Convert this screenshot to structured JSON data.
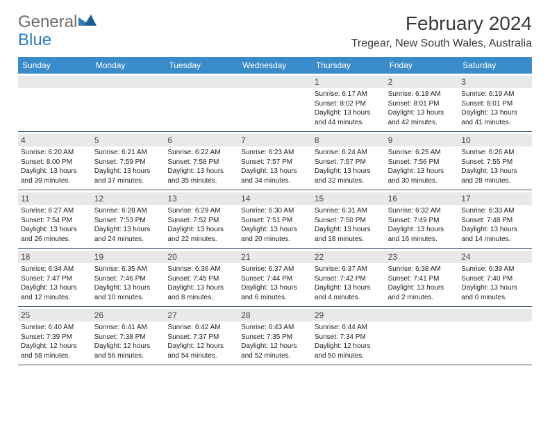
{
  "logo": {
    "text_general": "General",
    "text_blue": "Blue",
    "accent_color": "#2a7bbf"
  },
  "header": {
    "month_title": "February 2024",
    "location": "Tregear, New South Wales, Australia"
  },
  "calendar": {
    "header_bg": "#3a8bc9",
    "header_fg": "#ffffff",
    "daynum_bg": "#e9e9e9",
    "border_color": "#35506a",
    "days_of_week": [
      "Sunday",
      "Monday",
      "Tuesday",
      "Wednesday",
      "Thursday",
      "Friday",
      "Saturday"
    ],
    "weeks": [
      [
        {
          "day": "",
          "sunrise": "",
          "sunset": "",
          "daylight": ""
        },
        {
          "day": "",
          "sunrise": "",
          "sunset": "",
          "daylight": ""
        },
        {
          "day": "",
          "sunrise": "",
          "sunset": "",
          "daylight": ""
        },
        {
          "day": "",
          "sunrise": "",
          "sunset": "",
          "daylight": ""
        },
        {
          "day": "1",
          "sunrise": "Sunrise: 6:17 AM",
          "sunset": "Sunset: 8:02 PM",
          "daylight": "Daylight: 13 hours and 44 minutes."
        },
        {
          "day": "2",
          "sunrise": "Sunrise: 6:18 AM",
          "sunset": "Sunset: 8:01 PM",
          "daylight": "Daylight: 13 hours and 42 minutes."
        },
        {
          "day": "3",
          "sunrise": "Sunrise: 6:19 AM",
          "sunset": "Sunset: 8:01 PM",
          "daylight": "Daylight: 13 hours and 41 minutes."
        }
      ],
      [
        {
          "day": "4",
          "sunrise": "Sunrise: 6:20 AM",
          "sunset": "Sunset: 8:00 PM",
          "daylight": "Daylight: 13 hours and 39 minutes."
        },
        {
          "day": "5",
          "sunrise": "Sunrise: 6:21 AM",
          "sunset": "Sunset: 7:59 PM",
          "daylight": "Daylight: 13 hours and 37 minutes."
        },
        {
          "day": "6",
          "sunrise": "Sunrise: 6:22 AM",
          "sunset": "Sunset: 7:58 PM",
          "daylight": "Daylight: 13 hours and 35 minutes."
        },
        {
          "day": "7",
          "sunrise": "Sunrise: 6:23 AM",
          "sunset": "Sunset: 7:57 PM",
          "daylight": "Daylight: 13 hours and 34 minutes."
        },
        {
          "day": "8",
          "sunrise": "Sunrise: 6:24 AM",
          "sunset": "Sunset: 7:57 PM",
          "daylight": "Daylight: 13 hours and 32 minutes."
        },
        {
          "day": "9",
          "sunrise": "Sunrise: 6:25 AM",
          "sunset": "Sunset: 7:56 PM",
          "daylight": "Daylight: 13 hours and 30 minutes."
        },
        {
          "day": "10",
          "sunrise": "Sunrise: 6:26 AM",
          "sunset": "Sunset: 7:55 PM",
          "daylight": "Daylight: 13 hours and 28 minutes."
        }
      ],
      [
        {
          "day": "11",
          "sunrise": "Sunrise: 6:27 AM",
          "sunset": "Sunset: 7:54 PM",
          "daylight": "Daylight: 13 hours and 26 minutes."
        },
        {
          "day": "12",
          "sunrise": "Sunrise: 6:28 AM",
          "sunset": "Sunset: 7:53 PM",
          "daylight": "Daylight: 13 hours and 24 minutes."
        },
        {
          "day": "13",
          "sunrise": "Sunrise: 6:29 AM",
          "sunset": "Sunset: 7:52 PM",
          "daylight": "Daylight: 13 hours and 22 minutes."
        },
        {
          "day": "14",
          "sunrise": "Sunrise: 6:30 AM",
          "sunset": "Sunset: 7:51 PM",
          "daylight": "Daylight: 13 hours and 20 minutes."
        },
        {
          "day": "15",
          "sunrise": "Sunrise: 6:31 AM",
          "sunset": "Sunset: 7:50 PM",
          "daylight": "Daylight: 13 hours and 18 minutes."
        },
        {
          "day": "16",
          "sunrise": "Sunrise: 6:32 AM",
          "sunset": "Sunset: 7:49 PM",
          "daylight": "Daylight: 13 hours and 16 minutes."
        },
        {
          "day": "17",
          "sunrise": "Sunrise: 6:33 AM",
          "sunset": "Sunset: 7:48 PM",
          "daylight": "Daylight: 13 hours and 14 minutes."
        }
      ],
      [
        {
          "day": "18",
          "sunrise": "Sunrise: 6:34 AM",
          "sunset": "Sunset: 7:47 PM",
          "daylight": "Daylight: 13 hours and 12 minutes."
        },
        {
          "day": "19",
          "sunrise": "Sunrise: 6:35 AM",
          "sunset": "Sunset: 7:46 PM",
          "daylight": "Daylight: 13 hours and 10 minutes."
        },
        {
          "day": "20",
          "sunrise": "Sunrise: 6:36 AM",
          "sunset": "Sunset: 7:45 PM",
          "daylight": "Daylight: 13 hours and 8 minutes."
        },
        {
          "day": "21",
          "sunrise": "Sunrise: 6:37 AM",
          "sunset": "Sunset: 7:44 PM",
          "daylight": "Daylight: 13 hours and 6 minutes."
        },
        {
          "day": "22",
          "sunrise": "Sunrise: 6:37 AM",
          "sunset": "Sunset: 7:42 PM",
          "daylight": "Daylight: 13 hours and 4 minutes."
        },
        {
          "day": "23",
          "sunrise": "Sunrise: 6:38 AM",
          "sunset": "Sunset: 7:41 PM",
          "daylight": "Daylight: 13 hours and 2 minutes."
        },
        {
          "day": "24",
          "sunrise": "Sunrise: 6:39 AM",
          "sunset": "Sunset: 7:40 PM",
          "daylight": "Daylight: 13 hours and 0 minutes."
        }
      ],
      [
        {
          "day": "25",
          "sunrise": "Sunrise: 6:40 AM",
          "sunset": "Sunset: 7:39 PM",
          "daylight": "Daylight: 12 hours and 58 minutes."
        },
        {
          "day": "26",
          "sunrise": "Sunrise: 6:41 AM",
          "sunset": "Sunset: 7:38 PM",
          "daylight": "Daylight: 12 hours and 56 minutes."
        },
        {
          "day": "27",
          "sunrise": "Sunrise: 6:42 AM",
          "sunset": "Sunset: 7:37 PM",
          "daylight": "Daylight: 12 hours and 54 minutes."
        },
        {
          "day": "28",
          "sunrise": "Sunrise: 6:43 AM",
          "sunset": "Sunset: 7:35 PM",
          "daylight": "Daylight: 12 hours and 52 minutes."
        },
        {
          "day": "29",
          "sunrise": "Sunrise: 6:44 AM",
          "sunset": "Sunset: 7:34 PM",
          "daylight": "Daylight: 12 hours and 50 minutes."
        },
        {
          "day": "",
          "sunrise": "",
          "sunset": "",
          "daylight": ""
        },
        {
          "day": "",
          "sunrise": "",
          "sunset": "",
          "daylight": ""
        }
      ]
    ]
  }
}
